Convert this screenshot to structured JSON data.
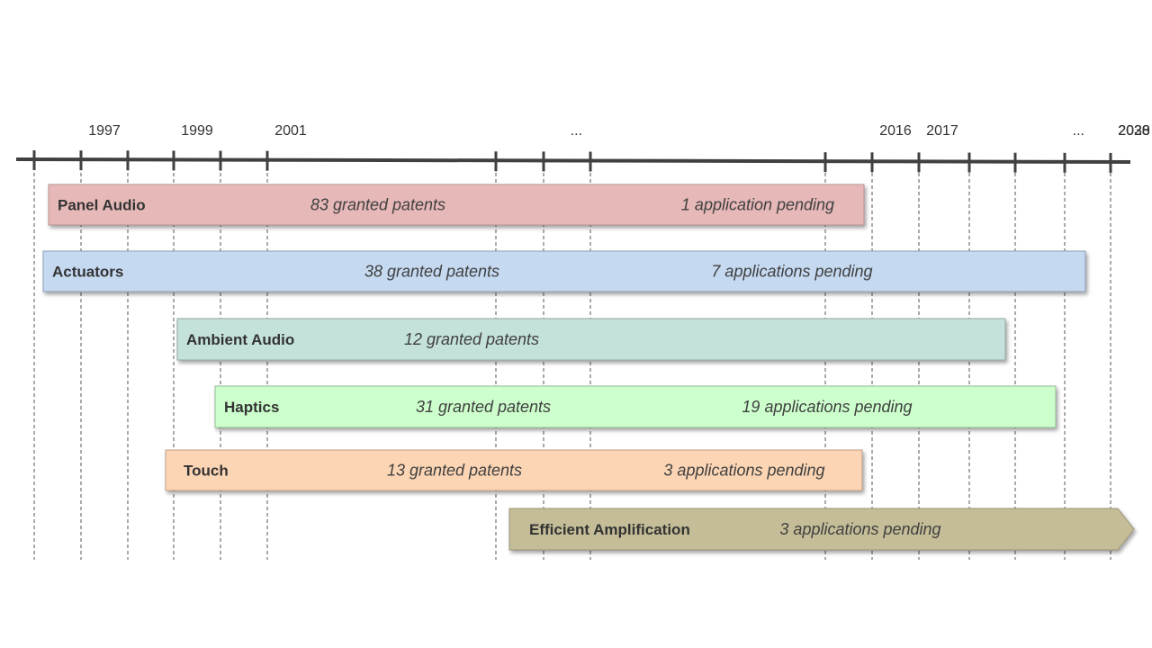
{
  "timeline": {
    "labels": [
      {
        "text": "1997",
        "tick": 1
      },
      {
        "text": "1999",
        "tick": 3
      },
      {
        "text": "2001",
        "tick": 5
      },
      {
        "text": "...",
        "tick": 7.7
      },
      {
        "text": "2016",
        "tick": 10
      },
      {
        "text": "2017",
        "tick": 11
      },
      {
        "text": "...",
        "tick": 14.3
      },
      {
        "text": "2028",
        "tick": 17
      },
      {
        "text": "2030",
        "tick": 19
      },
      {
        "text": "2033",
        "tick": 22.1
      }
    ]
  },
  "bars": [
    {
      "name": "Panel Audio",
      "granted": "83 granted patents",
      "pending": "1 application pending",
      "color": "#e6b8b7",
      "border": "#b69493",
      "shape": "rect"
    },
    {
      "name": "Actuators",
      "granted": "38 granted patents",
      "pending": "7 applications pending",
      "color": "#c5d9f1",
      "border": "#8ea0b6",
      "shape": "rect"
    },
    {
      "name": "Ambient Audio",
      "granted": "12 granted patents",
      "pending": "",
      "color": "#c4e1dc",
      "border": "#93a9a5",
      "shape": "rect"
    },
    {
      "name": "Haptics",
      "granted": "31 granted patents",
      "pending": "19 applications pending",
      "color": "#ccffcc",
      "border": "#95b895",
      "shape": "rect"
    },
    {
      "name": "Touch",
      "granted": "13 granted patents",
      "pending": "3 applications pending",
      "color": "#fcd5b4",
      "border": "#c0a08a",
      "shape": "rect"
    },
    {
      "name": "Efficient Amplification",
      "granted": "",
      "pending": "3 applications pending",
      "color": "#c4bd97",
      "border": "#9a9474",
      "shape": "arrow"
    }
  ]
}
